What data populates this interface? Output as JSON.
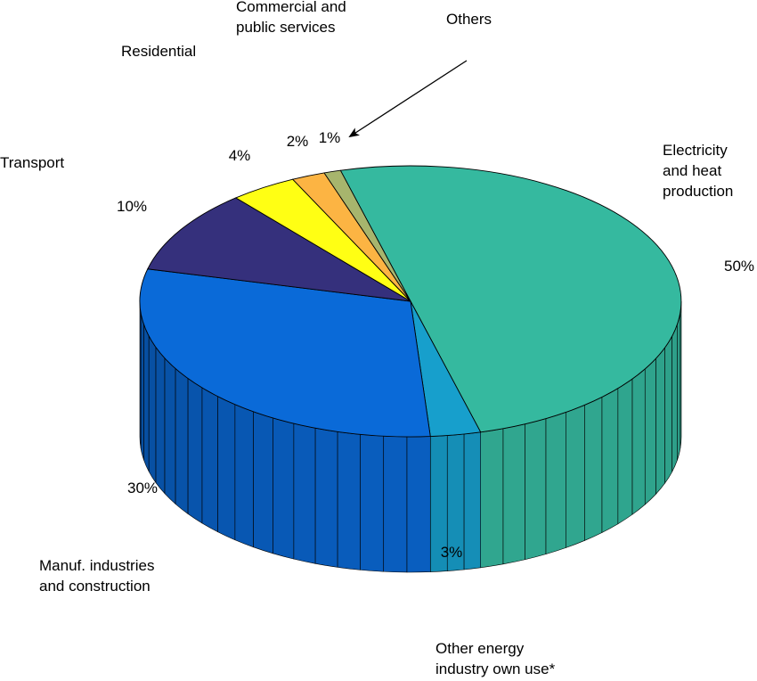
{
  "chart_data": {
    "type": "pie",
    "variant": "3d",
    "title": "",
    "slices": [
      {
        "label": "Electricity and heat production",
        "label_lines": [
          "Electricity",
          "and heat",
          "production"
        ],
        "value": 50,
        "value_label": "50%",
        "color": "#35b99f"
      },
      {
        "label": "Other energy industry own use*",
        "label_lines": [
          "Other energy",
          "industry own use*"
        ],
        "value": 3,
        "value_label": "3%",
        "color": "#179fcc"
      },
      {
        "label": "Manuf. industries and construction",
        "label_lines": [
          "Manuf. industries",
          "and construction"
        ],
        "value": 30,
        "value_label": "30%",
        "color": "#0a6ad8"
      },
      {
        "label": "Transport",
        "label_lines": [
          "Transport"
        ],
        "value": 10,
        "value_label": "10%",
        "color": "#35307c"
      },
      {
        "label": "Residential",
        "label_lines": [
          "Residential"
        ],
        "value": 4,
        "value_label": "4%",
        "color": "#ffff14"
      },
      {
        "label": "Commercial and public services",
        "label_lines": [
          "Commercial and",
          "public services"
        ],
        "value": 2,
        "value_label": "2%",
        "color": "#fcb443"
      },
      {
        "label": "Others",
        "label_lines": [
          "Others"
        ],
        "value": 1,
        "value_label": "1%",
        "color": "#a7b56d"
      }
    ],
    "legend": "none"
  }
}
